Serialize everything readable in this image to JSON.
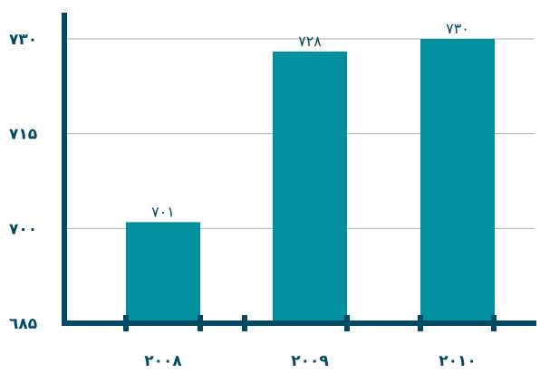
{
  "chart_data": {
    "type": "bar",
    "title": "",
    "xlabel": "",
    "ylabel": "",
    "categories": [
      "۲۰۰۸",
      "۲۰۰۹",
      "۲۰۱۰"
    ],
    "values": [
      701,
      728,
      730
    ],
    "data_labels": [
      "۷۰۱",
      "۷۲۸",
      "۷۳۰"
    ],
    "ylim": [
      685,
      730
    ],
    "yticks": [
      685,
      700,
      715,
      730
    ],
    "ytick_labels": [
      "٦۸۵",
      "۷۰۰",
      "۷۱۵",
      "۷۳۰"
    ],
    "grid": true,
    "legend": "none",
    "colors": {
      "bar": "#00909e",
      "axis": "#004a63",
      "grid": "#b0b0b0",
      "text": "#004a63"
    }
  }
}
